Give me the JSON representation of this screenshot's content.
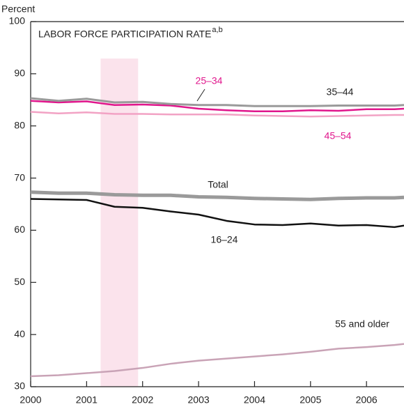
{
  "chart_data": {
    "type": "line",
    "title": "LABOR FORCE PARTICIPATION RATE",
    "title_note": "a,b",
    "y_label": "Percent",
    "xlim": [
      2000,
      2006.67
    ],
    "xticks": [
      2000,
      2001,
      2002,
      2003,
      2004,
      2005,
      2006
    ],
    "ylim": [
      30,
      100
    ],
    "yticks": [
      30,
      40,
      50,
      60,
      70,
      80,
      90,
      100
    ],
    "shaded": [
      2001.25,
      2001.92
    ],
    "x": [
      2000,
      2000.5,
      2001,
      2001.5,
      2002,
      2002.5,
      2003,
      2003.5,
      2004,
      2004.5,
      2005,
      2005.5,
      2006,
      2006.5,
      2006.67
    ],
    "series": [
      {
        "name": "Total",
        "color": "#9a9a9a",
        "values": [
          67.3,
          67.1,
          67.1,
          66.8,
          66.7,
          66.7,
          66.4,
          66.3,
          66.1,
          66.0,
          65.9,
          66.1,
          66.2,
          66.2,
          66.3
        ]
      },
      {
        "name": "16–24",
        "color": "#111111",
        "values": [
          66.0,
          65.9,
          65.8,
          64.5,
          64.3,
          63.6,
          63.0,
          61.8,
          61.1,
          61.0,
          61.3,
          60.9,
          61.0,
          60.6,
          60.9
        ]
      },
      {
        "name": "25–34",
        "color": "#e0168c",
        "values": [
          84.8,
          84.5,
          84.7,
          84.0,
          84.1,
          83.9,
          83.3,
          83.0,
          82.8,
          82.8,
          83.0,
          82.9,
          83.2,
          83.2,
          83.3
        ]
      },
      {
        "name": "35–44",
        "color": "#9a9a9a",
        "values": [
          85.3,
          84.8,
          85.2,
          84.5,
          84.6,
          84.2,
          84.0,
          84.0,
          83.8,
          83.8,
          83.8,
          83.9,
          83.9,
          83.9,
          84.0
        ]
      },
      {
        "name": "45–54",
        "color": "#f2a2c4",
        "values": [
          82.7,
          82.4,
          82.6,
          82.3,
          82.3,
          82.2,
          82.2,
          82.2,
          82.0,
          81.9,
          81.8,
          81.9,
          82.0,
          82.1,
          82.1
        ]
      },
      {
        "name": "55 and older",
        "color": "#c9a3b6",
        "values": [
          32.0,
          32.2,
          32.6,
          33.0,
          33.6,
          34.4,
          35.0,
          35.4,
          35.8,
          36.2,
          36.7,
          37.3,
          37.6,
          38.0,
          38.2
        ]
      }
    ]
  }
}
